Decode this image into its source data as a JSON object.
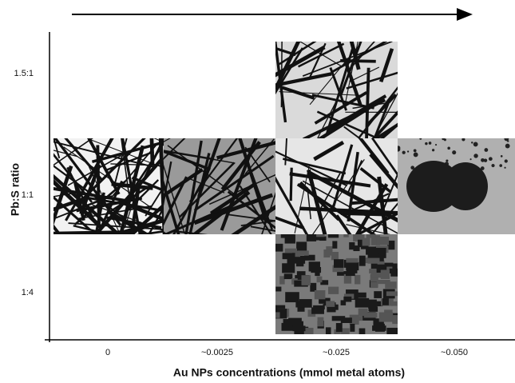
{
  "y_axis_title": "Pb:S ratio",
  "y_labels": [
    "1.5:1",
    "1:1",
    "1:4"
  ],
  "x_axis_title": "Au NPs concentrations (mmol metal atoms)",
  "x_labels": [
    "0",
    "~0.0025",
    "~0.025",
    "~0.050"
  ]
}
